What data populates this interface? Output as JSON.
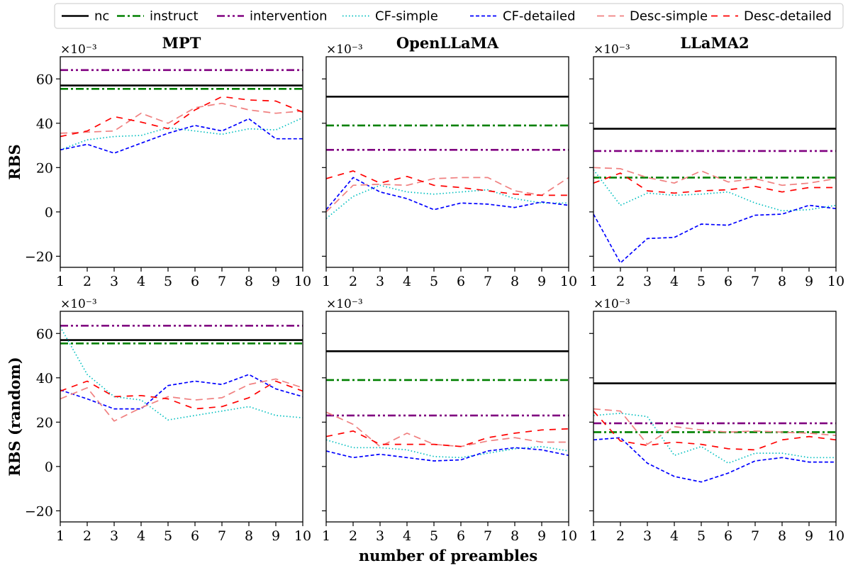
{
  "chart_data": {
    "type": "line",
    "xlabel": "number of preambles",
    "x": [
      1,
      2,
      3,
      4,
      5,
      6,
      7,
      8,
      9,
      10
    ],
    "xlim": [
      1,
      10
    ],
    "ylim": [
      -25,
      70
    ],
    "yticks": [
      -20,
      0,
      20,
      40,
      60
    ],
    "y_scale_label": "×10⁻³",
    "legend": {
      "placement": "top",
      "entries": [
        {
          "name": "nc",
          "color": "#000000",
          "style": "solid"
        },
        {
          "name": "instruct",
          "color": "#008000",
          "style": "dashdot"
        },
        {
          "name": "intervention",
          "color": "#800080",
          "style": "dashdotdot"
        },
        {
          "name": "CF-simple",
          "color": "#00bfbf",
          "style": "dotted"
        },
        {
          "name": "CF-detailed",
          "color": "#0000ff",
          "style": "dashed"
        },
        {
          "name": "Desc-simple",
          "color": "#f08080",
          "style": "longdash"
        },
        {
          "name": "Desc-detailed",
          "color": "#ff0000",
          "style": "dash"
        }
      ]
    },
    "rows": [
      {
        "ylabel": "RBS"
      },
      {
        "ylabel": "RBS (random)"
      }
    ],
    "columns": [
      {
        "title": "MPT"
      },
      {
        "title": "OpenLLaMA"
      },
      {
        "title": "LLaMA2"
      }
    ],
    "panels": [
      {
        "row": 0,
        "col": 0,
        "series": [
          {
            "name": "nc",
            "values": [
              57,
              57,
              57,
              57,
              57,
              57,
              57,
              57,
              57,
              57
            ]
          },
          {
            "name": "instruct",
            "values": [
              55.5,
              55.5,
              55.5,
              55.5,
              55.5,
              55.5,
              55.5,
              55.5,
              55.5,
              55.5
            ]
          },
          {
            "name": "intervention",
            "values": [
              64,
              64,
              64,
              64,
              64,
              64,
              64,
              64,
              64,
              64
            ]
          },
          {
            "name": "CF-simple",
            "values": [
              28,
              32.5,
              34,
              34.5,
              38,
              36.5,
              35,
              37.5,
              37,
              42.5
            ]
          },
          {
            "name": "CF-detailed",
            "values": [
              28,
              30.5,
              26.5,
              31,
              35.5,
              39,
              36.5,
              42,
              33,
              33
            ]
          },
          {
            "name": "Desc-simple",
            "values": [
              35.5,
              36,
              36.5,
              44.5,
              40,
              47,
              49,
              46,
              44.5,
              45.5
            ]
          },
          {
            "name": "Desc-detailed",
            "values": [
              34,
              36.5,
              43,
              40.5,
              37.5,
              46,
              52,
              50.5,
              50,
              45
            ]
          }
        ]
      },
      {
        "row": 0,
        "col": 1,
        "series": [
          {
            "name": "nc",
            "values": [
              52,
              52,
              52,
              52,
              52,
              52,
              52,
              52,
              52,
              52
            ]
          },
          {
            "name": "instruct",
            "values": [
              39,
              39,
              39,
              39,
              39,
              39,
              39,
              39,
              39,
              39
            ]
          },
          {
            "name": "intervention",
            "values": [
              28,
              28,
              28,
              28,
              28,
              28,
              28,
              28,
              28,
              28
            ]
          },
          {
            "name": "CF-simple",
            "values": [
              -3,
              7,
              12,
              9,
              8,
              9,
              10,
              6,
              4,
              4
            ]
          },
          {
            "name": "CF-detailed",
            "values": [
              1,
              15.5,
              9,
              6,
              1,
              4,
              3.5,
              2,
              4.5,
              3
            ]
          },
          {
            "name": "Desc-simple",
            "values": [
              0,
              12,
              12.5,
              12,
              15,
              15.5,
              15.5,
              9.5,
              7.5,
              15.5
            ]
          },
          {
            "name": "Desc-detailed",
            "values": [
              15,
              18.5,
              13,
              16,
              12,
              11,
              9.5,
              8,
              7.5,
              7.5
            ]
          }
        ]
      },
      {
        "row": 0,
        "col": 2,
        "series": [
          {
            "name": "nc",
            "values": [
              37.5,
              37.5,
              37.5,
              37.5,
              37.5,
              37.5,
              37.5,
              37.5,
              37.5,
              37.5
            ]
          },
          {
            "name": "instruct",
            "values": [
              15.5,
              15.5,
              15.5,
              15.5,
              15.5,
              15.5,
              15.5,
              15.5,
              15.5,
              15.5
            ]
          },
          {
            "name": "intervention",
            "values": [
              27.5,
              27.5,
              27.5,
              27.5,
              27.5,
              27.5,
              27.5,
              27.5,
              27.5,
              27.5
            ]
          },
          {
            "name": "CF-simple",
            "values": [
              19,
              3,
              8.5,
              7.5,
              8,
              9,
              4,
              0.5,
              1,
              3
            ]
          },
          {
            "name": "CF-detailed",
            "values": [
              -1,
              -23,
              -12,
              -11.5,
              -5.5,
              -6,
              -1.5,
              -1,
              3,
              1.5
            ]
          },
          {
            "name": "Desc-simple",
            "values": [
              20,
              19.5,
              15.5,
              13,
              18.5,
              13.5,
              15,
              12,
              13,
              15
            ]
          },
          {
            "name": "Desc-detailed",
            "values": [
              13,
              17.5,
              9.5,
              8.5,
              9.5,
              10,
              11.5,
              9,
              11,
              11
            ]
          }
        ]
      },
      {
        "row": 1,
        "col": 0,
        "series": [
          {
            "name": "nc",
            "values": [
              57,
              57,
              57,
              57,
              57,
              57,
              57,
              57,
              57,
              57
            ]
          },
          {
            "name": "instruct",
            "values": [
              55.5,
              55.5,
              55.5,
              55.5,
              55.5,
              55.5,
              55.5,
              55.5,
              55.5,
              55.5
            ]
          },
          {
            "name": "intervention",
            "values": [
              63.5,
              63.5,
              63.5,
              63.5,
              63.5,
              63.5,
              63.5,
              63.5,
              63.5,
              63.5
            ]
          },
          {
            "name": "CF-simple",
            "values": [
              63,
              41.5,
              31.5,
              30,
              21,
              23,
              25,
              27,
              23,
              22
            ]
          },
          {
            "name": "CF-detailed",
            "values": [
              34.5,
              30.5,
              26,
              26,
              36.5,
              38.5,
              37,
              41.5,
              35,
              31.5
            ]
          },
          {
            "name": "Desc-simple",
            "values": [
              30.5,
              35.5,
              20.5,
              26.5,
              31.5,
              30,
              31,
              37,
              39.5,
              35.5
            ]
          },
          {
            "name": "Desc-detailed",
            "values": [
              34,
              38.5,
              31.5,
              32,
              30.5,
              26,
              27,
              31,
              38.5,
              34
            ]
          }
        ]
      },
      {
        "row": 1,
        "col": 1,
        "series": [
          {
            "name": "nc",
            "values": [
              52,
              52,
              52,
              52,
              52,
              52,
              52,
              52,
              52,
              52
            ]
          },
          {
            "name": "instruct",
            "values": [
              39,
              39,
              39,
              39,
              39,
              39,
              39,
              39,
              39,
              39
            ]
          },
          {
            "name": "intervention",
            "values": [
              23,
              23,
              23,
              23,
              23,
              23,
              23,
              23,
              23,
              23
            ]
          },
          {
            "name": "CF-simple",
            "values": [
              12,
              8.5,
              8.5,
              7.5,
              4.5,
              4,
              6,
              8,
              9,
              7
            ]
          },
          {
            "name": "CF-detailed",
            "values": [
              7,
              4,
              5.5,
              4,
              2.5,
              3,
              7,
              8.5,
              7.5,
              5
            ]
          },
          {
            "name": "Desc-simple",
            "values": [
              24.5,
              19,
              9,
              15,
              10,
              9,
              11.5,
              13,
              11,
              11
            ]
          },
          {
            "name": "Desc-detailed",
            "values": [
              13.5,
              16,
              10,
              10,
              10,
              9,
              13,
              15,
              16.5,
              17
            ]
          }
        ]
      },
      {
        "row": 1,
        "col": 2,
        "series": [
          {
            "name": "nc",
            "values": [
              37.5,
              37.5,
              37.5,
              37.5,
              37.5,
              37.5,
              37.5,
              37.5,
              37.5,
              37.5
            ]
          },
          {
            "name": "instruct",
            "values": [
              15.5,
              15.5,
              15.5,
              15.5,
              15.5,
              15.5,
              15.5,
              15.5,
              15.5,
              15.5
            ]
          },
          {
            "name": "intervention",
            "values": [
              19.5,
              19.5,
              19.5,
              19.5,
              19.5,
              19.5,
              19.5,
              19.5,
              19.5,
              19.5
            ]
          },
          {
            "name": "CF-simple",
            "values": [
              23,
              24,
              22.5,
              5,
              9,
              1.5,
              6,
              6,
              4,
              4
            ]
          },
          {
            "name": "CF-detailed",
            "values": [
              12,
              13,
              1.5,
              -4.5,
              -7,
              -3,
              2.5,
              4,
              2,
              2
            ]
          },
          {
            "name": "Desc-simple",
            "values": [
              26,
              25,
              10,
              18,
              16.5,
              15.5,
              16,
              15.5,
              15,
              14
            ]
          },
          {
            "name": "Desc-detailed",
            "values": [
              25,
              11.5,
              9.5,
              11,
              10,
              8,
              7.5,
              12,
              13.5,
              12
            ]
          }
        ]
      }
    ]
  }
}
